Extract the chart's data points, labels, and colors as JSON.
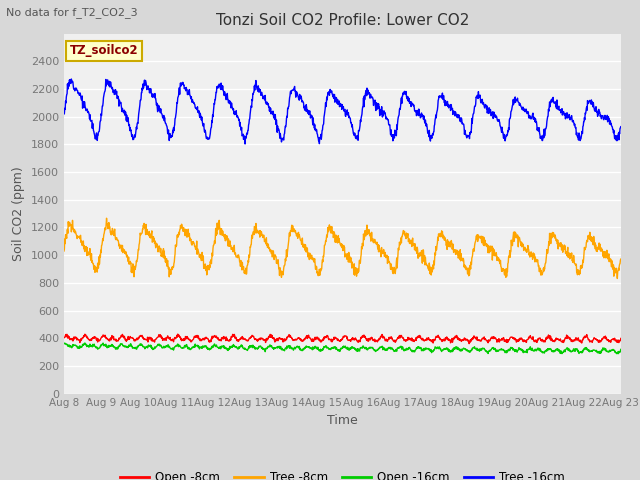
{
  "title": "Tonzi Soil CO2 Profile: Lower CO2",
  "subtitle": "No data for f_T2_CO2_3",
  "xlabel": "Time",
  "ylabel": "Soil CO2 (ppm)",
  "fig_bg_color": "#d8d8d8",
  "plot_bg_color": "#f0f0f0",
  "ylim": [
    0,
    2600
  ],
  "yticks": [
    0,
    200,
    400,
    600,
    800,
    1000,
    1200,
    1400,
    1600,
    1800,
    2000,
    2200,
    2400
  ],
  "xtick_labels": [
    "Aug 8",
    "Aug 9",
    "Aug 10",
    "Aug 11",
    "Aug 12",
    "Aug 13",
    "Aug 14",
    "Aug 15",
    "Aug 16",
    "Aug 17",
    "Aug 18",
    "Aug 19",
    "Aug 20",
    "Aug 21",
    "Aug 22",
    "Aug 23"
  ],
  "legend_label_box": "TZ_soilco2",
  "legend_entries": [
    "Open -8cm",
    "Tree -8cm",
    "Open -16cm",
    "Tree -16cm"
  ],
  "legend_colors": [
    "#ff0000",
    "#ffa500",
    "#00cc00",
    "#0000ff"
  ],
  "line_colors": {
    "open_8cm": "#ff0000",
    "tree_8cm": "#ffa500",
    "open_16cm": "#00cc00",
    "tree_16cm": "#0000ff"
  },
  "line_width": 1.0,
  "grid_color": "#ffffff",
  "tick_color": "#777777",
  "label_color": "#555555",
  "title_color": "#333333"
}
